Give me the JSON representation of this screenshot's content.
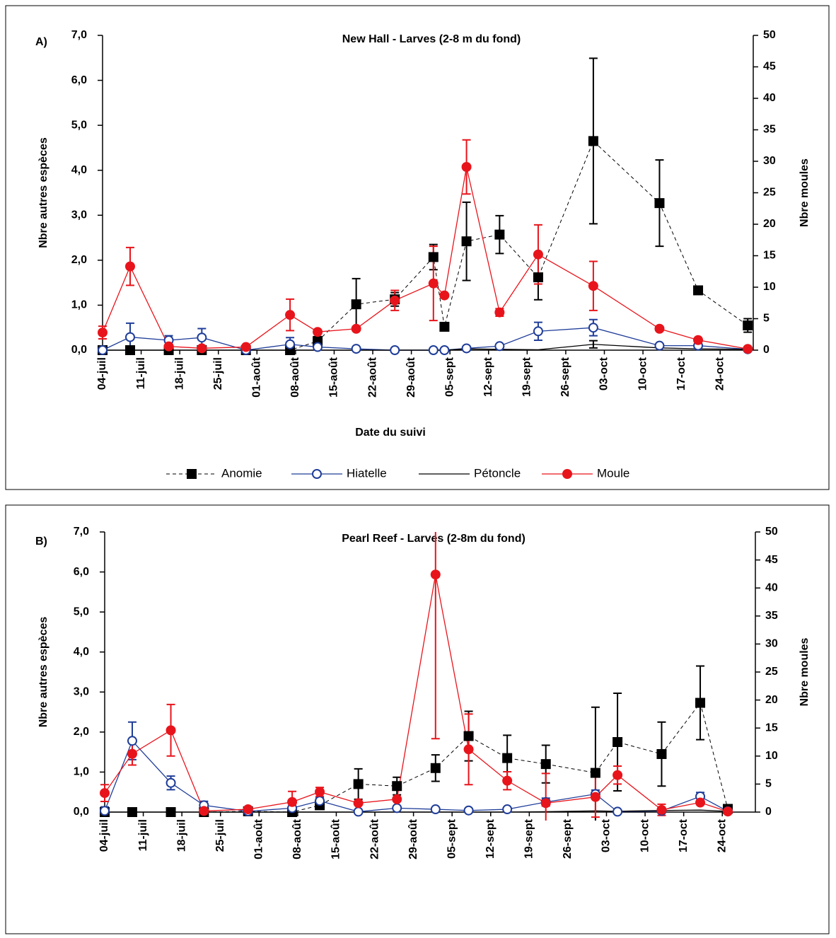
{
  "chart_data": [
    {
      "type": "line",
      "panel_label": "A)",
      "title": "New Hall - Larves (2-8 m du fond)",
      "x_label": "Date du suivi",
      "y_label": "Nbre autres espèces",
      "y2_label": "Nbre moules",
      "legend": "bottom",
      "x": [
        0,
        5,
        12,
        18,
        26,
        34,
        39,
        46,
        53,
        60,
        62,
        66,
        72,
        79,
        89,
        101,
        108,
        117
      ],
      "xlim": [
        0,
        118
      ],
      "xticks": [
        {
          "value": 0,
          "label": "04-juil"
        },
        {
          "value": 7,
          "label": "11-juil"
        },
        {
          "value": 14,
          "label": "18-juil"
        },
        {
          "value": 21,
          "label": "25-juil"
        },
        {
          "value": 28,
          "label": "01-août"
        },
        {
          "value": 35,
          "label": "08-août"
        },
        {
          "value": 42,
          "label": "15-août"
        },
        {
          "value": 49,
          "label": "22-août"
        },
        {
          "value": 56,
          "label": "29-août"
        },
        {
          "value": 63,
          "label": "05-sept"
        },
        {
          "value": 70,
          "label": "12-sept"
        },
        {
          "value": 77,
          "label": "19-sept"
        },
        {
          "value": 84,
          "label": "26-sept"
        },
        {
          "value": 91,
          "label": "03-oct"
        },
        {
          "value": 98,
          "label": "10-oct"
        },
        {
          "value": 105,
          "label": "17-oct"
        },
        {
          "value": 112,
          "label": "24-oct"
        }
      ],
      "ylim": [
        0,
        7
      ],
      "yticks": [
        {
          "value": 0,
          "label": "0,0"
        },
        {
          "value": 1,
          "label": "1,0"
        },
        {
          "value": 2,
          "label": "2,0"
        },
        {
          "value": 3,
          "label": "3,0"
        },
        {
          "value": 4,
          "label": "4,0"
        },
        {
          "value": 5,
          "label": "5,0"
        },
        {
          "value": 6,
          "label": "6,0"
        },
        {
          "value": 7,
          "label": "7,0"
        }
      ],
      "y2lim": [
        0,
        50
      ],
      "y2ticks": [
        0,
        5,
        10,
        15,
        20,
        25,
        30,
        35,
        40,
        45,
        50
      ],
      "series": [
        {
          "name": "Anomie",
          "color": "#000000",
          "marker": "square",
          "dash": true,
          "values": [
            0,
            0,
            0,
            0,
            0,
            0,
            0.2,
            1.02,
            1.13,
            2.07,
            0.52,
            2.42,
            2.57,
            1.62,
            4.65,
            3.27,
            1.33,
            0.55
          ],
          "errors": [
            null,
            null,
            null,
            null,
            null,
            null,
            0.1,
            0.57,
            0.15,
            0.28,
            null,
            0.87,
            0.42,
            0.5,
            1.84,
            0.96,
            null,
            0.15
          ]
        },
        {
          "name": "Hiatelle",
          "color": "#1f3d99",
          "marker": "circle-open",
          "dash": false,
          "values": [
            0,
            0.29,
            0.22,
            0.28,
            0,
            0.13,
            0.07,
            0.03,
            0,
            0,
            0,
            0.04,
            0.09,
            0.42,
            0.5,
            0.1,
            0.1,
            0.02
          ],
          "errors": [
            null,
            0.31,
            0.1,
            0.2,
            null,
            0.15,
            null,
            null,
            null,
            null,
            null,
            null,
            null,
            0.2,
            0.18,
            null,
            null,
            null
          ]
        },
        {
          "name": "Pétoncle",
          "color": "#000000",
          "marker": "none",
          "dash": false,
          "values": [
            0,
            0,
            0,
            0,
            0,
            0,
            0,
            0,
            0,
            0,
            0,
            0.03,
            0.02,
            0.01,
            0.13,
            0.05,
            0.03,
            0.02
          ],
          "errors": [
            null,
            null,
            null,
            null,
            null,
            null,
            null,
            null,
            null,
            null,
            null,
            null,
            null,
            null,
            0.08,
            null,
            null,
            null
          ]
        },
        {
          "name": "Moule",
          "color": "#e8141b",
          "marker": "circle",
          "dash": false,
          "axis": "y2",
          "values": [
            2.8,
            13.3,
            0.6,
            0.3,
            0.5,
            5.6,
            2.9,
            3.4,
            7.9,
            10.6,
            8.7,
            29.1,
            6,
            15.2,
            10.2,
            3.4,
            1.6,
            0.2
          ],
          "errors": [
            1,
            3,
            null,
            null,
            null,
            2.5,
            null,
            null,
            1.6,
            5.9,
            null,
            4.3,
            0.6,
            4.7,
            3.9,
            null,
            null,
            null
          ]
        }
      ]
    },
    {
      "type": "line",
      "panel_label": "B)",
      "title": "Pearl Reef - Larves (2-8m du fond)",
      "y_label": "Nbre autres espèces",
      "y2_label": "Nbre moules",
      "x": [
        0,
        5,
        12,
        18,
        26,
        34,
        39,
        46,
        53,
        60,
        66,
        73,
        80,
        89,
        93,
        101,
        108,
        113
      ],
      "xlim": [
        0,
        118
      ],
      "xticks": [
        {
          "value": 0,
          "label": "04-juil"
        },
        {
          "value": 7,
          "label": "11-juil"
        },
        {
          "value": 14,
          "label": "18-juil"
        },
        {
          "value": 21,
          "label": "25-juil"
        },
        {
          "value": 28,
          "label": "01-août"
        },
        {
          "value": 35,
          "label": "08-août"
        },
        {
          "value": 42,
          "label": "15-août"
        },
        {
          "value": 49,
          "label": "22-août"
        },
        {
          "value": 56,
          "label": "29-août"
        },
        {
          "value": 63,
          "label": "05-sept"
        },
        {
          "value": 70,
          "label": "12-sept"
        },
        {
          "value": 77,
          "label": "19-sept"
        },
        {
          "value": 84,
          "label": "26-sept"
        },
        {
          "value": 91,
          "label": "03-oct"
        },
        {
          "value": 98,
          "label": "10-oct"
        },
        {
          "value": 105,
          "label": "17-oct"
        },
        {
          "value": 112,
          "label": "24-oct"
        }
      ],
      "ylim": [
        0,
        7
      ],
      "yticks": [
        {
          "value": 0,
          "label": "0,0"
        },
        {
          "value": 1,
          "label": "1,0"
        },
        {
          "value": 2,
          "label": "2,0"
        },
        {
          "value": 3,
          "label": "3,0"
        },
        {
          "value": 4,
          "label": "4,0"
        },
        {
          "value": 5,
          "label": "5,0"
        },
        {
          "value": 6,
          "label": "6,0"
        },
        {
          "value": 7,
          "label": "7,0"
        }
      ],
      "y2lim": [
        0,
        50
      ],
      "y2ticks": [
        0,
        5,
        10,
        15,
        20,
        25,
        30,
        35,
        40,
        45,
        50
      ],
      "series": [
        {
          "name": "Anomie",
          "color": "#000000",
          "marker": "square",
          "dash": true,
          "values": [
            0,
            0,
            0,
            0,
            0.02,
            0,
            0.17,
            0.7,
            0.65,
            1.1,
            1.9,
            1.35,
            1.2,
            0.98,
            1.75,
            1.45,
            2.73,
            0.08
          ],
          "errors": [
            null,
            null,
            null,
            null,
            null,
            null,
            0.08,
            0.38,
            0.22,
            0.33,
            0.62,
            0.57,
            0.47,
            1.64,
            1.22,
            0.8,
            0.92,
            0.1
          ]
        },
        {
          "name": "Hiatelle",
          "color": "#1f3d99",
          "marker": "circle-open",
          "dash": false,
          "values": [
            0.03,
            1.78,
            0.73,
            0.17,
            0.02,
            0.1,
            0.28,
            0.01,
            0.1,
            0.07,
            0.04,
            0.07,
            0.25,
            0.45,
            0.01,
            0.03,
            0.39,
            0.02
          ],
          "errors": [
            0.1,
            0.47,
            0.17,
            0.1,
            null,
            null,
            0.08,
            null,
            null,
            null,
            null,
            null,
            0.1,
            0.1,
            null,
            null,
            0.1,
            null
          ]
        },
        {
          "name": "Pétoncle",
          "color": "#000000",
          "marker": "none",
          "dash": false,
          "values": [
            0,
            0,
            0,
            0,
            0,
            0,
            0,
            0,
            0,
            0,
            0,
            0,
            0.01,
            0.03,
            0.02,
            0.04,
            0.05,
            0.02
          ],
          "errors": [
            null,
            null,
            null,
            null,
            null,
            null,
            null,
            null,
            null,
            null,
            null,
            null,
            null,
            null,
            null,
            null,
            null,
            null
          ]
        },
        {
          "name": "Moule",
          "color": "#e8141b",
          "marker": "circle",
          "dash": false,
          "axis": "y2",
          "values": [
            3.4,
            10.4,
            14.6,
            0.2,
            0.5,
            1.8,
            3.6,
            1.6,
            2.3,
            42.4,
            11.2,
            5.6,
            1.6,
            2.7,
            6.6,
            0.4,
            1.7,
            0.1
          ],
          "errors": [
            1.5,
            2,
            4.6,
            null,
            null,
            1.9,
            0.8,
            null,
            null,
            29.3,
            6.3,
            1.6,
            5.3,
            3.6,
            1.6,
            1,
            0.3,
            null
          ]
        }
      ]
    }
  ]
}
